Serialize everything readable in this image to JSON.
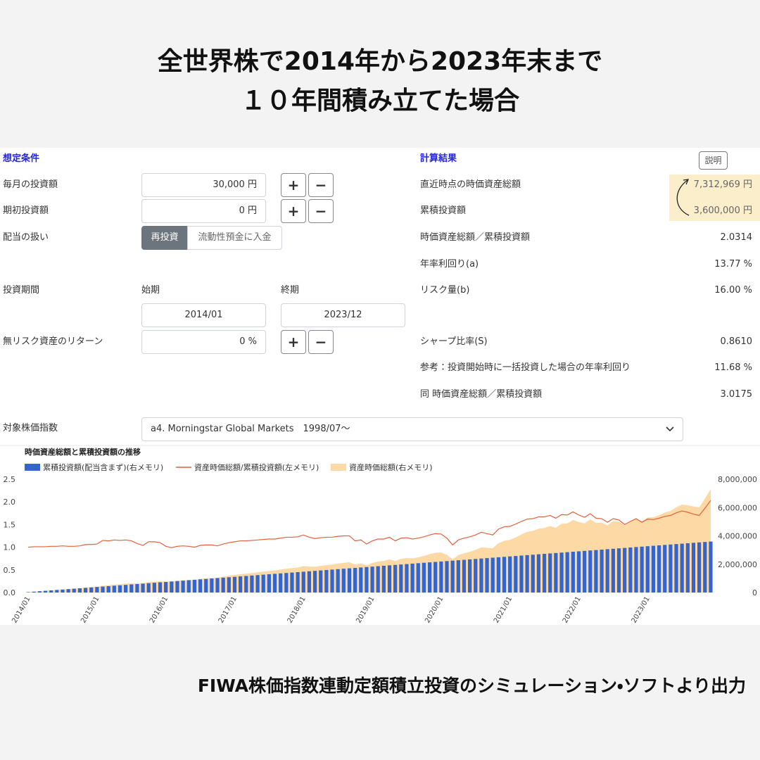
{
  "header": {
    "title_lines": [
      "全世界株で2014年から2023年末まで",
      "１０年間積み立てた場合"
    ]
  },
  "conditions": {
    "heading": "想定条件",
    "monthly_amount": {
      "label": "毎月の投資額",
      "value": "30,000",
      "unit": "円"
    },
    "initial_amount": {
      "label": "期初投資額",
      "value": "0",
      "unit": "円"
    },
    "dividends": {
      "label": "配当の扱い",
      "options": [
        "再投資",
        "流動性預金に入金"
      ]
    },
    "period": {
      "label": "投資期間",
      "start_label": "始期",
      "end_label": "終期",
      "start": "2014/01",
      "end": "2023/12"
    },
    "risk_free": {
      "label": "無リスク資産のリターン",
      "value": "0",
      "unit": "%"
    },
    "index": {
      "label": "対象株価指数",
      "value": "a4. Morningstar Global Markets　1998/07〜"
    }
  },
  "stepper": {
    "plus": "+",
    "minus": "−"
  },
  "results": {
    "heading": "計算結果",
    "help": "説明",
    "rows": [
      {
        "label": "直近時点の時価資産総額",
        "value": "7,312,969",
        "unit": "円"
      },
      {
        "label": "累積投資額",
        "value": "3,600,000",
        "unit": "円"
      },
      {
        "label": "時価資産総額／累積投資額",
        "value": "2.0314"
      },
      {
        "label": "年率利回り(a)",
        "value": "13.77",
        "unit": "%"
      },
      {
        "label": "リスク量(b)",
        "value": "16.00",
        "unit": "%"
      },
      {
        "label": "シャープ比率(S)",
        "value": "0.8610"
      },
      {
        "label": "参考：投資開始時に一括投資した場合の年率利回り",
        "value": "11.68",
        "unit": "%"
      },
      {
        "label": "同 時価資産総額／累積投資額",
        "value": "3.0175"
      }
    ]
  },
  "footer": "FIWA株価指数連動定額積立投資のシミュレーション・ソフトより出力",
  "chart_data": {
    "type": "combo",
    "title": "時価資産総額と累積投資額の推移",
    "categories": [
      "2014/01",
      null,
      null,
      null,
      null,
      null,
      null,
      null,
      null,
      null,
      null,
      null,
      "2015/01",
      null,
      null,
      null,
      null,
      null,
      null,
      null,
      null,
      null,
      null,
      null,
      "2016/01",
      null,
      null,
      null,
      null,
      null,
      null,
      null,
      null,
      null,
      null,
      null,
      "2017/01",
      null,
      null,
      null,
      null,
      null,
      null,
      null,
      null,
      null,
      null,
      null,
      "2018/01",
      null,
      null,
      null,
      null,
      null,
      null,
      null,
      null,
      null,
      null,
      null,
      "2019/01",
      null,
      null,
      null,
      null,
      null,
      null,
      null,
      null,
      null,
      null,
      null,
      "2020/01",
      null,
      null,
      null,
      null,
      null,
      null,
      null,
      null,
      null,
      null,
      null,
      "2021/01",
      null,
      null,
      null,
      null,
      null,
      null,
      null,
      null,
      null,
      null,
      null,
      "2022/01",
      null,
      null,
      null,
      null,
      null,
      null,
      null,
      null,
      null,
      null,
      null,
      "2023/01",
      null,
      null,
      null,
      null,
      null,
      null,
      null,
      null,
      null,
      null,
      null
    ],
    "series": [
      {
        "name": "累積投資額(配当含まず)(右メモリ)",
        "type": "bar",
        "axis": "y2",
        "color": "#3366cc",
        "values": [
          30000,
          60000,
          90000,
          120000,
          150000,
          180000,
          210000,
          240000,
          270000,
          300000,
          330000,
          360000,
          390000,
          420000,
          450000,
          480000,
          510000,
          540000,
          570000,
          600000,
          630000,
          660000,
          690000,
          720000,
          750000,
          780000,
          810000,
          840000,
          870000,
          900000,
          930000,
          960000,
          990000,
          1020000,
          1050000,
          1080000,
          1110000,
          1140000,
          1170000,
          1200000,
          1230000,
          1260000,
          1290000,
          1320000,
          1350000,
          1380000,
          1410000,
          1440000,
          1470000,
          1500000,
          1530000,
          1560000,
          1590000,
          1620000,
          1650000,
          1680000,
          1710000,
          1740000,
          1770000,
          1800000,
          1830000,
          1860000,
          1890000,
          1920000,
          1950000,
          1980000,
          2010000,
          2040000,
          2070000,
          2100000,
          2130000,
          2160000,
          2190000,
          2220000,
          2250000,
          2280000,
          2310000,
          2340000,
          2370000,
          2400000,
          2430000,
          2460000,
          2490000,
          2520000,
          2550000,
          2580000,
          2610000,
          2640000,
          2670000,
          2700000,
          2730000,
          2760000,
          2790000,
          2820000,
          2850000,
          2880000,
          2910000,
          2940000,
          2970000,
          3000000,
          3030000,
          3060000,
          3090000,
          3120000,
          3150000,
          3180000,
          3210000,
          3240000,
          3270000,
          3300000,
          3330000,
          3360000,
          3390000,
          3420000,
          3450000,
          3480000,
          3510000,
          3540000,
          3570000,
          3600000
        ]
      },
      {
        "name": "資産時価総額/累積投資額(左メモリ)",
        "type": "line",
        "axis": "y",
        "color": "#e4603c",
        "values": [
          1.0,
          1.01,
          1.01,
          1.01,
          1.02,
          1.02,
          1.03,
          1.02,
          1.02,
          1.03,
          1.06,
          1.06,
          1.07,
          1.15,
          1.14,
          1.16,
          1.15,
          1.16,
          1.14,
          1.08,
          1.04,
          1.12,
          1.12,
          1.1,
          1.02,
          0.99,
          1.02,
          1.03,
          1.02,
          1.0,
          1.04,
          1.05,
          1.05,
          1.03,
          1.07,
          1.1,
          1.12,
          1.14,
          1.14,
          1.15,
          1.16,
          1.17,
          1.18,
          1.18,
          1.2,
          1.22,
          1.22,
          1.23,
          1.27,
          1.22,
          1.19,
          1.21,
          1.22,
          1.22,
          1.24,
          1.25,
          1.25,
          1.14,
          1.16,
          1.07,
          1.14,
          1.18,
          1.18,
          1.22,
          1.14,
          1.2,
          1.21,
          1.18,
          1.2,
          1.23,
          1.27,
          1.3,
          1.29,
          1.2,
          1.05,
          1.16,
          1.2,
          1.23,
          1.27,
          1.33,
          1.3,
          1.27,
          1.4,
          1.45,
          1.46,
          1.51,
          1.57,
          1.62,
          1.63,
          1.67,
          1.67,
          1.7,
          1.64,
          1.72,
          1.71,
          1.78,
          1.71,
          1.66,
          1.74,
          1.64,
          1.63,
          1.55,
          1.63,
          1.6,
          1.5,
          1.57,
          1.63,
          1.55,
          1.62,
          1.61,
          1.64,
          1.68,
          1.7,
          1.76,
          1.8,
          1.77,
          1.73,
          1.7,
          1.86,
          2.0314
        ]
      },
      {
        "name": "資産時価総額(右メモリ)",
        "type": "area",
        "axis": "y2",
        "color": "#fdd9a6",
        "values": [
          30000,
          60600,
          90900,
          121200,
          153000,
          183600,
          216300,
          244800,
          275400,
          309000,
          349800,
          381600,
          417300,
          483000,
          513000,
          556800,
          586500,
          626400,
          649800,
          648000,
          655200,
          739200,
          772800,
          792000,
          765000,
          772200,
          826200,
          865200,
          887400,
          900000,
          967200,
          1008000,
          1039500,
          1050600,
          1123500,
          1188000,
          1243200,
          1299600,
          1333800,
          1380000,
          1426800,
          1474200,
          1522200,
          1557600,
          1620000,
          1683600,
          1720200,
          1771200,
          1866900,
          1830000,
          1820700,
          1887600,
          1939800,
          1976400,
          2046000,
          2100000,
          2137500,
          1983600,
          2053200,
          1926000,
          2086200,
          2194800,
          2230200,
          2342400,
          2223000,
          2376000,
          2432100,
          2407200,
          2484000,
          2583000,
          2705100,
          2808000,
          2825100,
          2664000,
          2362500,
          2644800,
          2772000,
          2878200,
          3009900,
          3192000,
          3159000,
          3124200,
          3486000,
          3654000,
          3723000,
          3895800,
          4097700,
          4276800,
          4352100,
          4509000,
          4559100,
          4692000,
          4575600,
          4850400,
          4873500,
          5126400,
          4976100,
          4880400,
          5167800,
          4920000,
          4938900,
          4743000,
          5036700,
          4992000,
          4725000,
          4992600,
          5232300,
          5022000,
          5297400,
          5313000,
          5461200,
          5644800,
          5763000,
          6019200,
          6210000,
          6159600,
          6072300,
          6018000,
          6640200,
          7312969
        ]
      }
    ],
    "ylim": [
      0,
      2.5
    ],
    "yticks": [
      {
        "value": 0,
        "label": "0.0"
      },
      0.5,
      {
        "value": 1,
        "label": "1.0"
      },
      1.5,
      {
        "value": 2,
        "label": "2.0"
      },
      2.5
    ],
    "y2lim": [
      0,
      8000000
    ],
    "y2ticks": [
      0,
      {
        "value": 2000000,
        "label": "2,000,000"
      },
      {
        "value": 4000000,
        "label": "4,000,000"
      },
      {
        "value": 6000000,
        "label": "6,000,000"
      },
      {
        "value": 8000000,
        "label": "8,000,000"
      }
    ],
    "grid": false
  }
}
